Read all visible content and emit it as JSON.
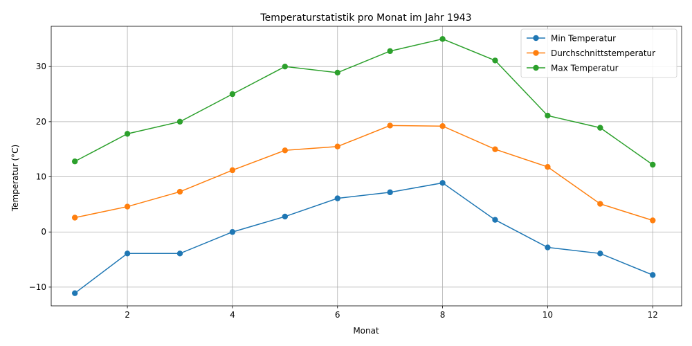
{
  "chart_data": {
    "type": "line",
    "title": "Temperaturstatistik pro Monat im Jahr 1943",
    "xlabel": "Monat",
    "ylabel": "Temperatur (°C)",
    "x": [
      1,
      2,
      3,
      4,
      5,
      6,
      7,
      8,
      9,
      10,
      11,
      12
    ],
    "xlim": [
      0.55,
      12.55
    ],
    "ylim": [
      -13.4,
      37.3
    ],
    "xticks": [
      2,
      4,
      6,
      8,
      10,
      12
    ],
    "yticks": [
      -10,
      0,
      10,
      20,
      30
    ],
    "grid": true,
    "legend_position": "top-right",
    "series": [
      {
        "name": "Min Temperatur",
        "color": "#1f77b4",
        "values": [
          -11.1,
          -3.9,
          -3.9,
          0.0,
          2.8,
          6.1,
          7.2,
          8.9,
          2.2,
          -2.8,
          -3.9,
          -7.8
        ]
      },
      {
        "name": "Durchschnittstemperatur",
        "color": "#ff7f0e",
        "values": [
          2.6,
          4.6,
          7.3,
          11.2,
          14.8,
          15.5,
          19.3,
          19.2,
          15.0,
          11.8,
          5.1,
          2.1
        ]
      },
      {
        "name": "Max Temperatur",
        "color": "#2ca02c",
        "values": [
          12.8,
          17.8,
          20.0,
          25.0,
          30.0,
          28.9,
          32.8,
          35.0,
          31.1,
          21.1,
          18.9,
          12.2
        ]
      }
    ]
  }
}
